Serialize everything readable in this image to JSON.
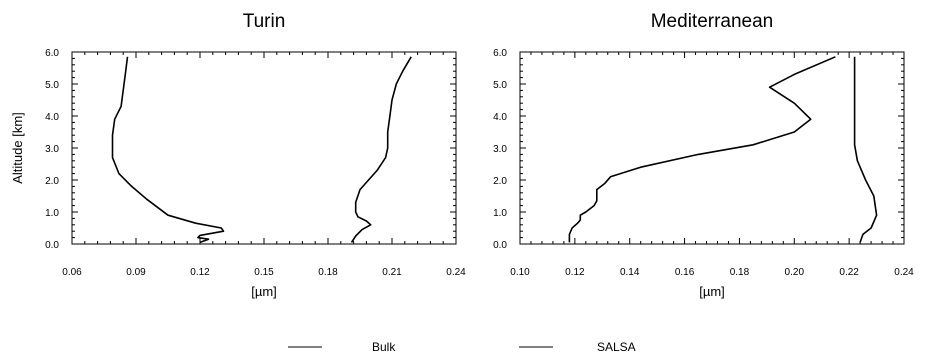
{
  "legend": [
    {
      "label": "Bulk"
    },
    {
      "label": "SALSA"
    }
  ],
  "chart_data": [
    {
      "type": "line",
      "title": "Turin",
      "xlabel": "[µm]",
      "ylabel": "Altitude [km]",
      "xlim": [
        0.06,
        0.24
      ],
      "ylim": [
        0.0,
        6.0
      ],
      "xticks": [
        "0.06",
        "0.09",
        "0.12",
        "0.15",
        "0.18",
        "0.21",
        "0.24"
      ],
      "yticks": [
        "0.0",
        "1.0",
        "2.0",
        "3.0",
        "4.0",
        "5.0",
        "6.0"
      ],
      "series": [
        {
          "name": "Bulk",
          "color": "#000000",
          "points": [
            [
              0.12,
              0.05
            ],
            [
              0.124,
              0.15
            ],
            [
              0.119,
              0.2
            ],
            [
              0.12,
              0.27
            ],
            [
              0.131,
              0.4
            ],
            [
              0.13,
              0.5
            ],
            [
              0.118,
              0.65
            ],
            [
              0.105,
              0.9
            ],
            [
              0.095,
              1.4
            ],
            [
              0.088,
              1.8
            ],
            [
              0.082,
              2.2
            ],
            [
              0.079,
              2.7
            ],
            [
              0.079,
              3.0
            ],
            [
              0.079,
              3.4
            ],
            [
              0.08,
              3.9
            ],
            [
              0.083,
              4.3
            ],
            [
              0.084,
              4.8
            ],
            [
              0.085,
              5.3
            ],
            [
              0.086,
              5.85
            ]
          ]
        },
        {
          "name": "SALSA",
          "color": "#000000",
          "points": [
            [
              0.191,
              0.05
            ],
            [
              0.193,
              0.25
            ],
            [
              0.196,
              0.45
            ],
            [
              0.2,
              0.6
            ],
            [
              0.198,
              0.72
            ],
            [
              0.194,
              0.85
            ],
            [
              0.193,
              1.0
            ],
            [
              0.193,
              1.3
            ],
            [
              0.195,
              1.7
            ],
            [
              0.203,
              2.3
            ],
            [
              0.207,
              2.7
            ],
            [
              0.208,
              3.0
            ],
            [
              0.208,
              3.5
            ],
            [
              0.209,
              4.0
            ],
            [
              0.21,
              4.5
            ],
            [
              0.212,
              5.0
            ],
            [
              0.215,
              5.4
            ],
            [
              0.219,
              5.85
            ]
          ]
        }
      ]
    },
    {
      "type": "line",
      "title": "Mediterranean",
      "xlabel": "[µm]",
      "ylabel": "",
      "xlim": [
        0.1,
        0.24
      ],
      "ylim": [
        0.0,
        6.0
      ],
      "xticks": [
        "0.10",
        "0.12",
        "0.14",
        "0.16",
        "0.18",
        "0.20",
        "0.22",
        "0.24"
      ],
      "yticks": [
        "0.0",
        "1.0",
        "2.0",
        "3.0",
        "4.0",
        "5.0",
        "6.0"
      ],
      "series": [
        {
          "name": "Bulk",
          "color": "#000000",
          "points": [
            [
              0.118,
              0.05
            ],
            [
              0.118,
              0.3
            ],
            [
              0.119,
              0.5
            ],
            [
              0.121,
              0.65
            ],
            [
              0.122,
              0.75
            ],
            [
              0.122,
              0.9
            ],
            [
              0.124,
              1.0
            ],
            [
              0.127,
              1.2
            ],
            [
              0.128,
              1.35
            ],
            [
              0.128,
              1.7
            ],
            [
              0.131,
              1.9
            ],
            [
              0.133,
              2.1
            ],
            [
              0.144,
              2.4
            ],
            [
              0.165,
              2.8
            ],
            [
              0.185,
              3.1
            ],
            [
              0.2,
              3.5
            ],
            [
              0.206,
              3.9
            ],
            [
              0.2,
              4.4
            ],
            [
              0.191,
              4.9
            ],
            [
              0.2,
              5.3
            ],
            [
              0.215,
              5.85
            ]
          ]
        },
        {
          "name": "SALSA",
          "color": "#000000",
          "points": [
            [
              0.224,
              0.05
            ],
            [
              0.225,
              0.3
            ],
            [
              0.228,
              0.5
            ],
            [
              0.23,
              0.9
            ],
            [
              0.229,
              1.5
            ],
            [
              0.226,
              2.0
            ],
            [
              0.223,
              2.6
            ],
            [
              0.222,
              3.1
            ],
            [
              0.222,
              4.0
            ],
            [
              0.222,
              5.0
            ],
            [
              0.222,
              5.85
            ]
          ]
        }
      ]
    }
  ]
}
